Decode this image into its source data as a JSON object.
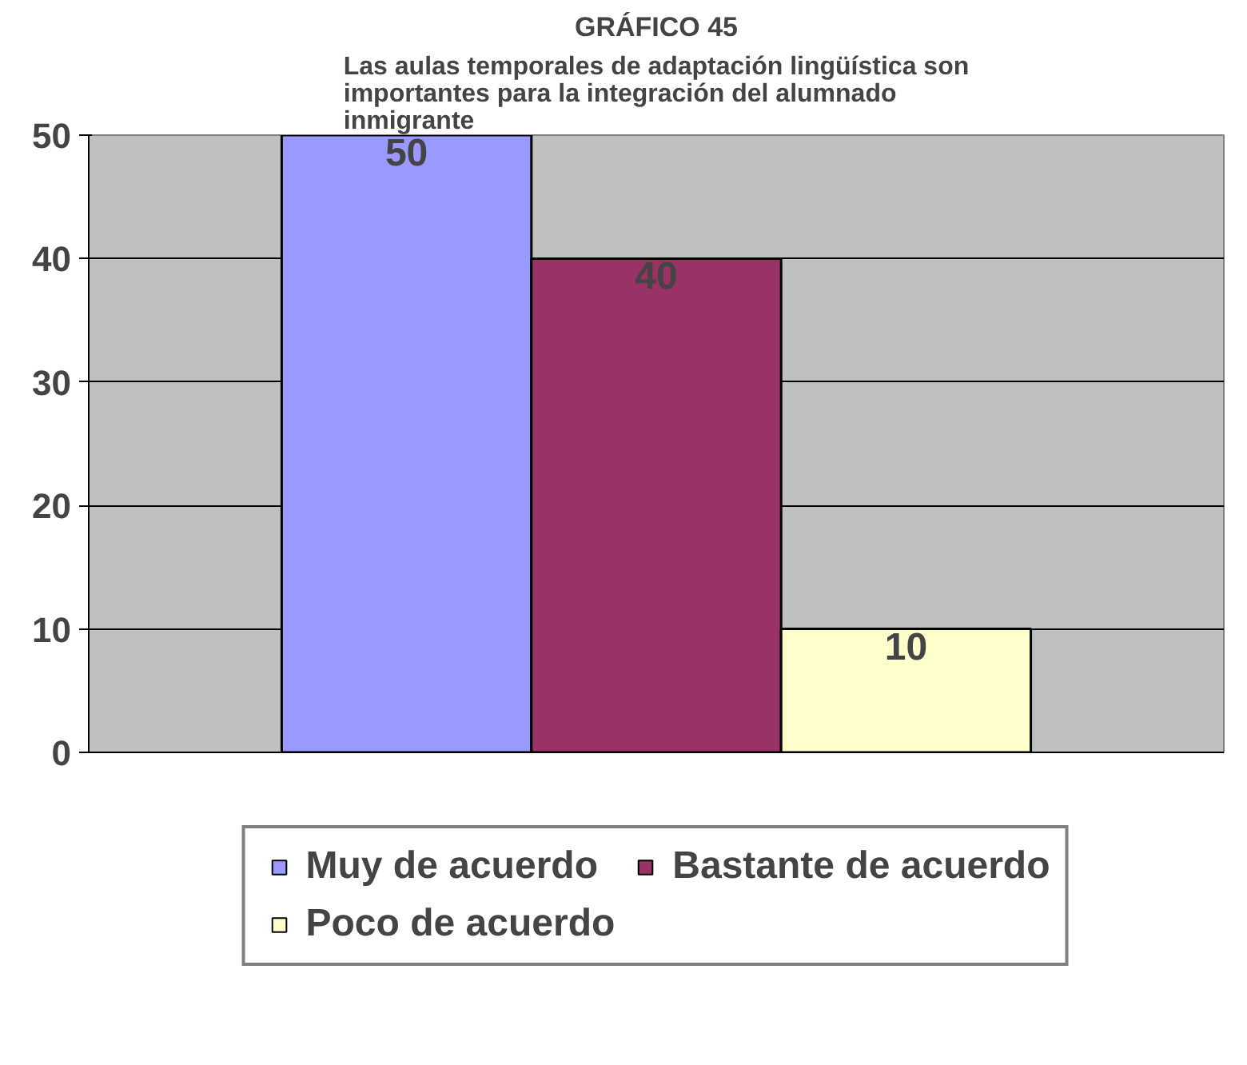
{
  "chart_data": {
    "type": "bar",
    "title": "GRÁFICO 45",
    "subtitle": "Las aulas temporales de adaptación lingüística son importantes para la integración del alumnado inmigrante",
    "categories": [
      null
    ],
    "series": [
      {
        "name": "Muy de acuerdo",
        "color": "#9999ff",
        "values": [
          50
        ]
      },
      {
        "name": "Bastante de acuerdo",
        "color": "#993366",
        "values": [
          40
        ]
      },
      {
        "name": "Poco de acuerdo",
        "color": "#ffffcc",
        "values": [
          10
        ]
      }
    ],
    "ylim": [
      0,
      50
    ],
    "yticks": [
      0,
      10,
      20,
      30,
      40,
      50
    ],
    "grid": "y",
    "legend": "bottom",
    "data_labels": true
  }
}
